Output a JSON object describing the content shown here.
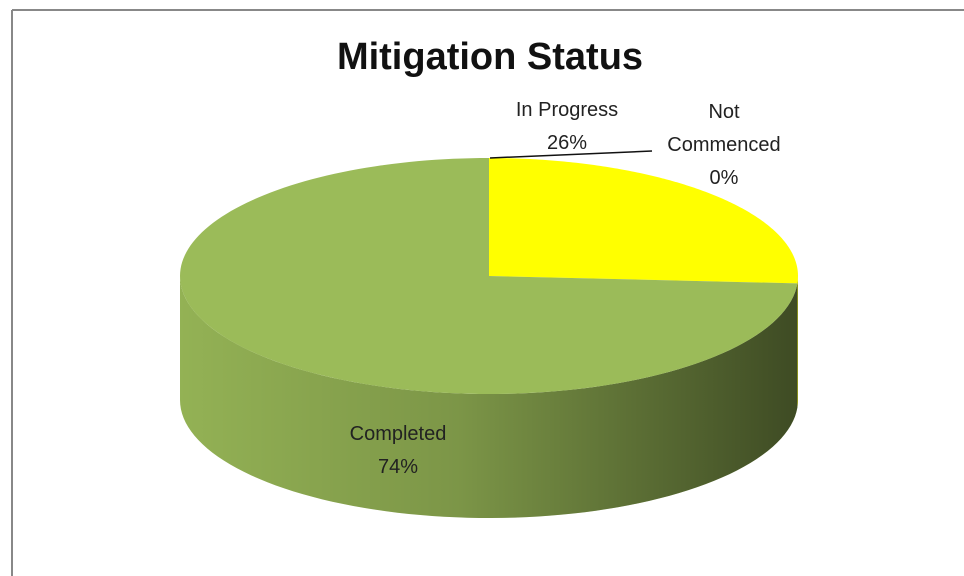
{
  "chart_data": {
    "type": "pie",
    "title": "Mitigation Status",
    "categories": [
      "Not Commenced",
      "In Progress",
      "Completed"
    ],
    "values": [
      0,
      26,
      74
    ],
    "value_labels": [
      "0%",
      "26%",
      "74%"
    ],
    "colors": [
      "#c0504d",
      "#ffff00",
      "#9bbb59"
    ]
  }
}
